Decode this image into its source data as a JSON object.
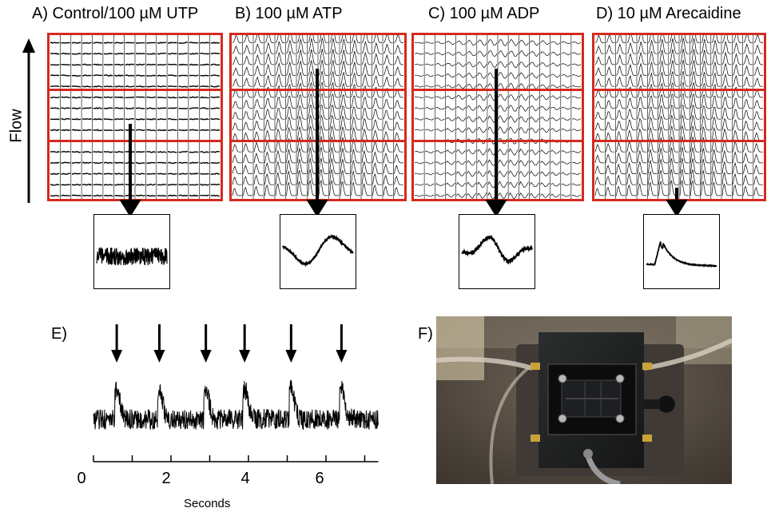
{
  "panels": [
    {
      "id": "A",
      "title": "A) Control/100 µM UTP",
      "inset_type": "noise"
    },
    {
      "id": "B",
      "title": "B) 100 µM ATP",
      "inset_type": "wave"
    },
    {
      "id": "C",
      "title": "C) 100 µM ADP",
      "inset_type": "wave2"
    },
    {
      "id": "D",
      "title": "D) 10 µM Arecaidine",
      "inset_type": "spike"
    }
  ],
  "flow_label": "Flow",
  "panel_e": {
    "label": "E)",
    "xlabel": "Seconds",
    "x_ticks": [
      "0",
      "2",
      "4",
      "6"
    ],
    "stim_times_s": [
      0.6,
      1.7,
      2.9,
      3.9,
      5.1,
      6.4
    ]
  },
  "panel_f": {
    "label": "F)"
  },
  "colors": {
    "panel_border": "#d42a1f",
    "trace": "#000000"
  }
}
